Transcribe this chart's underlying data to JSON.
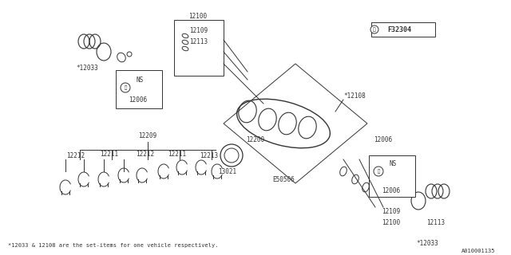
{
  "bg_color": "#ffffff",
  "line_color": "#333333",
  "title_box": "F32304",
  "part_number_ref": "A010001135",
  "footnote": "*12033 & 12108 are the set-items for one vehicle respectively.",
  "labels": {
    "12033_top_left": "*12033",
    "12006_top": "12006",
    "12100_top": "12100",
    "12109_top": "12109",
    "12113_top": "12113",
    "12108": "*12108",
    "12200": "12200",
    "13021": "13021",
    "E50506": "E50506",
    "12100_bot": "12100",
    "12109_bot": "12109",
    "12113_bot": "12113",
    "12006_bot": "12006",
    "12033_bot": "*12033",
    "12209": "12209",
    "12211_left": "12211",
    "12212_left": "12212",
    "12211_right": "12211",
    "12212_right": "12212",
    "12213": "12213",
    "NS_top": "NS",
    "NS_bot": "NS"
  },
  "font_size_label": 5.5,
  "font_size_footnote": 5.0,
  "font_size_ref": 5.0
}
